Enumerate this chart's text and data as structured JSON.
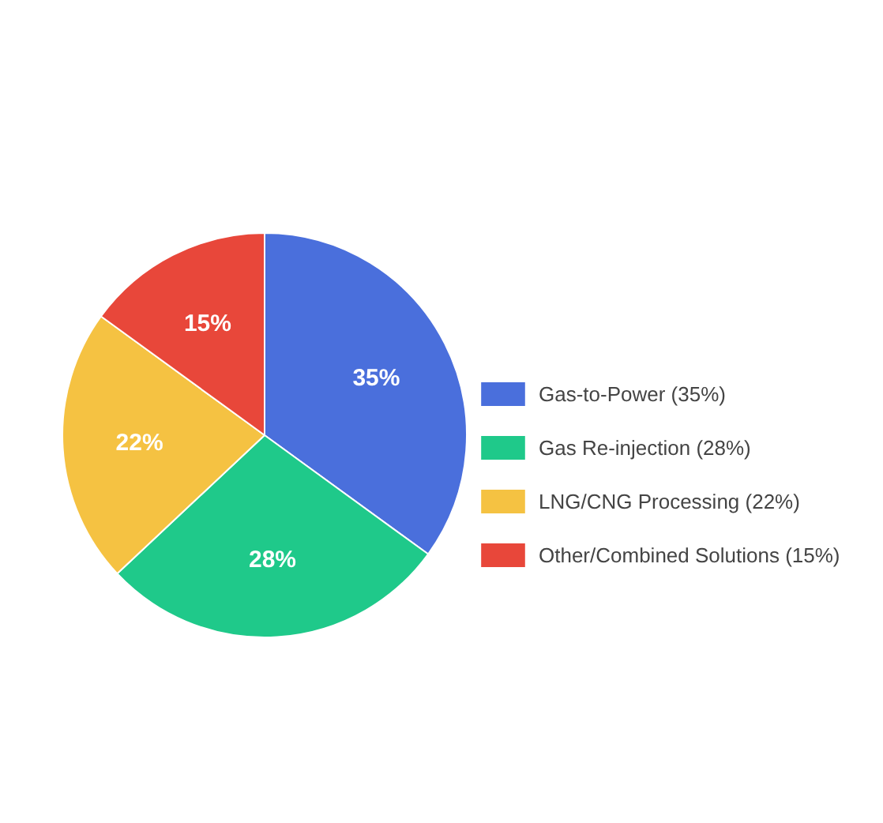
{
  "chart_data": {
    "type": "pie",
    "categories": [
      "Gas-to-Power (35%)",
      "Gas Re-injection (28%)",
      "LNG/CNG Processing (22%)",
      "Other/Combined Solutions (15%)"
    ],
    "values": [
      35,
      28,
      22,
      15
    ],
    "colors": [
      "#4a6fdc",
      "#1fc98a",
      "#f5c242",
      "#e8473a"
    ],
    "value_labels": [
      "35%",
      "28%",
      "22%",
      "15%"
    ],
    "legend": "right"
  }
}
